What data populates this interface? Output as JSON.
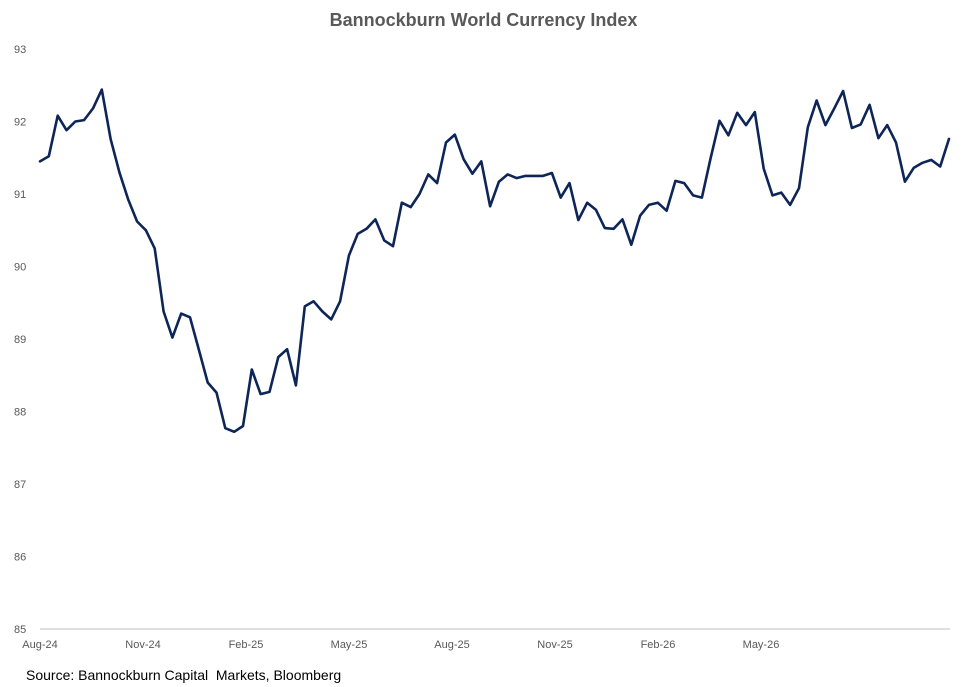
{
  "chart_data": {
    "type": "line",
    "title": "Bannockburn World Currency Index",
    "xlabel": "",
    "ylabel": "",
    "ylim": [
      85,
      93
    ],
    "yticks": [
      "85",
      "86",
      "87",
      "88",
      "89",
      "90",
      "91",
      "92",
      "93"
    ],
    "xticks": [
      "Aug-24",
      "Nov-24",
      "Feb-25",
      "May-25",
      "Aug-25",
      "Nov-25",
      "Feb-26",
      "May-26"
    ],
    "grid": false,
    "legend": "none",
    "series": [
      {
        "color": "#0d2557",
        "values": [
          91.45,
          91.52,
          92.08,
          91.88,
          92.0,
          92.02,
          92.18,
          92.44,
          91.76,
          91.3,
          90.92,
          90.62,
          90.5,
          90.25,
          89.38,
          89.02,
          89.35,
          89.3,
          88.85,
          88.4,
          88.26,
          87.77,
          87.72,
          87.8,
          88.58,
          88.24,
          88.27,
          88.75,
          88.86,
          88.36,
          89.45,
          89.52,
          89.38,
          89.27,
          89.52,
          90.15,
          90.45,
          90.52,
          90.65,
          90.36,
          90.28,
          90.88,
          90.82,
          91.0,
          91.27,
          91.15,
          91.71,
          91.82,
          91.48,
          91.28,
          91.45,
          90.83,
          91.17,
          91.27,
          91.22,
          91.25,
          91.25,
          91.25,
          91.29,
          90.95,
          91.15,
          90.64,
          90.88,
          90.78,
          90.53,
          90.52,
          90.65,
          90.3,
          90.7,
          90.85,
          90.88,
          90.77,
          91.18,
          91.15,
          90.98,
          90.95,
          91.5,
          92.01,
          91.81,
          92.12,
          91.95,
          92.13,
          91.35,
          90.98,
          91.02,
          90.85,
          91.08,
          91.92,
          92.29,
          91.95,
          92.18,
          92.42,
          91.91,
          91.96,
          92.23,
          91.77,
          91.95,
          91.71,
          91.17,
          91.36,
          91.43,
          91.47,
          91.38,
          91.76
        ]
      }
    ]
  },
  "source": "Source: Bannockburn Capital  Markets, Bloomberg"
}
